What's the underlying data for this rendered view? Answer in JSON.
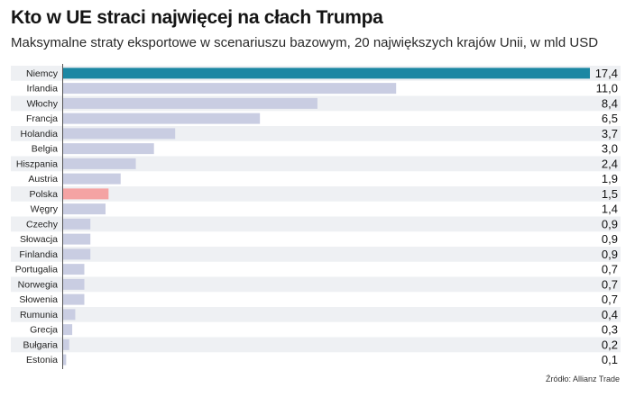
{
  "header": {
    "title": "Kto w UE straci najwięcej na cłach Trumpa",
    "subtitle": "Maksymalne straty eksportowe w scenariuszu bazowym, 20 największych krajów Unii, w mld USD"
  },
  "footer": {
    "source": "Źródło: Allianz Trade"
  },
  "colors": {
    "highlight_germany": "#1b87a3",
    "highlight_poland": "#f4a3a3",
    "default_bar": "#c9cde2",
    "row_stripe": "#eef0f3",
    "axis": "#555555"
  },
  "chart_data": {
    "type": "bar",
    "orientation": "horizontal",
    "title": "Kto w UE straci najwięcej na cłach Trumpa",
    "subtitle": "Maksymalne straty eksportowe w scenariuszu bazowym, 20 największych krajów Unii, w mld USD",
    "categories": [
      "Niemcy",
      "Irlandia",
      "Włochy",
      "Francja",
      "Holandia",
      "Belgia",
      "Hiszpania",
      "Austria",
      "Polska",
      "Węgry",
      "Czechy",
      "Słowacja",
      "Finlandia",
      "Portugalia",
      "Norwegia",
      "Słowenia",
      "Rumunia",
      "Grecja",
      "Bułgaria",
      "Estonia"
    ],
    "values": [
      17.4,
      11.0,
      8.4,
      6.5,
      3.7,
      3.0,
      2.4,
      1.9,
      1.5,
      1.4,
      0.9,
      0.9,
      0.9,
      0.7,
      0.7,
      0.7,
      0.4,
      0.3,
      0.2,
      0.1
    ],
    "value_labels": [
      "17,4",
      "11,0",
      "8,4",
      "6,5",
      "3,7",
      "3,0",
      "2,4",
      "1,9",
      "1,5",
      "1,4",
      "0,9",
      "0,9",
      "0,9",
      "0,7",
      "0,7",
      "0,7",
      "0,4",
      "0,3",
      "0,2",
      "0,1"
    ],
    "highlights": {
      "Niemcy": "#1b87a3",
      "Polska": "#f4a3a3"
    },
    "xlim": [
      0,
      17.4
    ],
    "grid": false,
    "legend": "none"
  }
}
